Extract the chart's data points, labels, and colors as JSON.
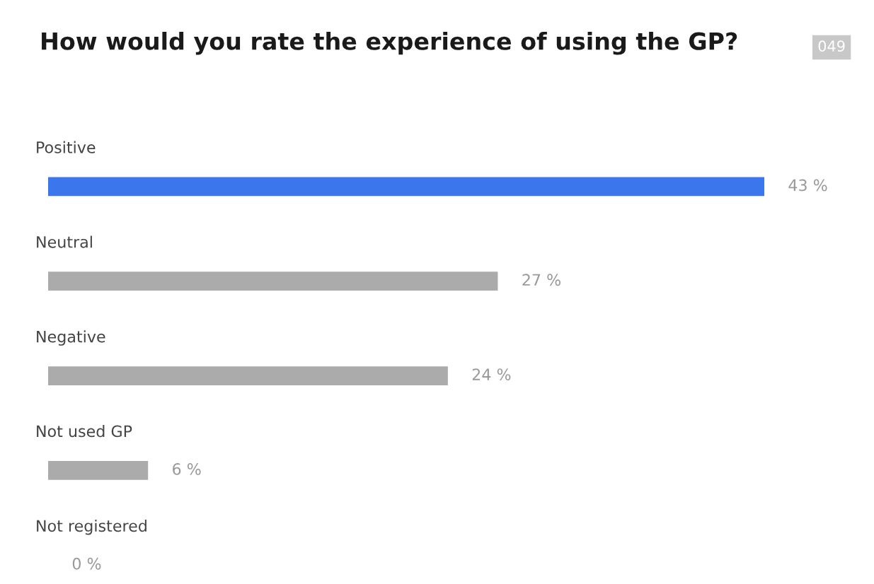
{
  "chart_data": {
    "type": "bar",
    "orientation": "horizontal",
    "title": "How would you rate the experience of using the GP?",
    "categories": [
      "Positive",
      "Neutral",
      "Negative",
      "Not used GP",
      "Not registered"
    ],
    "values": [
      43,
      27,
      24,
      6,
      0
    ],
    "value_labels": [
      "43 %",
      "27 %",
      "24 %",
      "6 %",
      "0 %"
    ],
    "colors": [
      "#3b76ec",
      "#ababab",
      "#ababab",
      "#ababab",
      "#ababab"
    ],
    "annotations": [
      "049"
    ]
  }
}
